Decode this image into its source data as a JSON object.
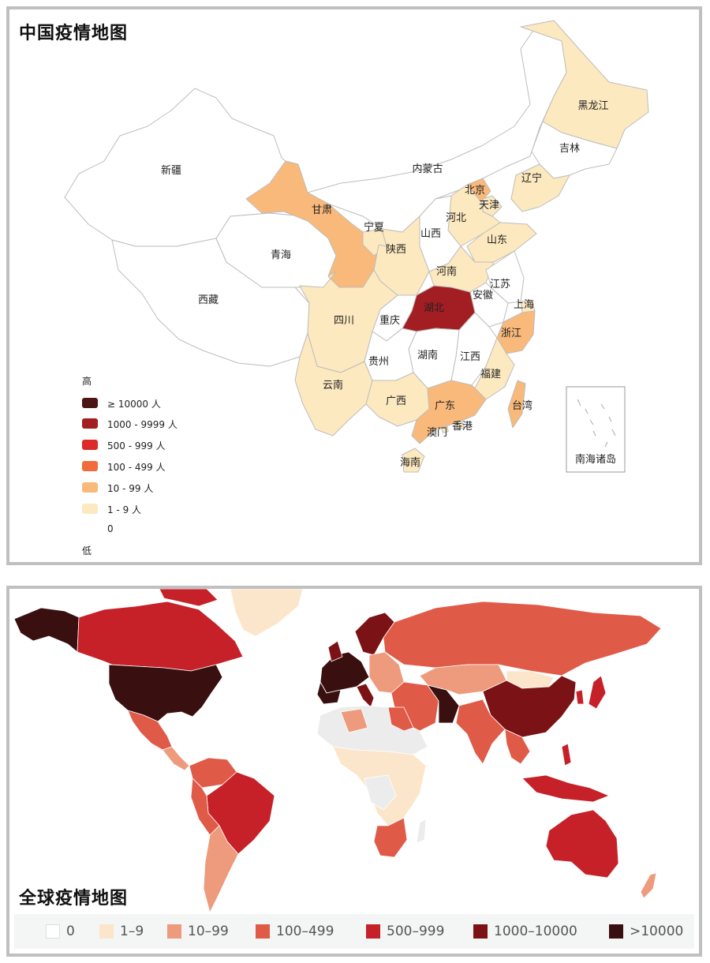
{
  "china_map": {
    "title": "中国疫情地图",
    "legend": {
      "high_label": "高",
      "low_label": "低",
      "items": [
        {
          "label": "≥ 10000 人",
          "color": "#4a1512"
        },
        {
          "label": "1000 - 9999 人",
          "color": "#a31e22"
        },
        {
          "label": "500 - 999 人",
          "color": "#dd2b2b"
        },
        {
          "label": "100 - 499 人",
          "color": "#f26b3c"
        },
        {
          "label": "10 - 99 人",
          "color": "#f9b97a"
        },
        {
          "label": "1 - 9 人",
          "color": "#fde9bf"
        },
        {
          "label": "0",
          "color": "#ffffff"
        }
      ]
    },
    "provinces": [
      {
        "name": "新疆",
        "level": "0"
      },
      {
        "name": "西藏",
        "level": "0"
      },
      {
        "name": "青海",
        "level": "0"
      },
      {
        "name": "甘肃",
        "level": "10 - 99 人"
      },
      {
        "name": "内蒙古",
        "level": "0"
      },
      {
        "name": "宁夏",
        "level": "1 - 9 人"
      },
      {
        "name": "陕西",
        "level": "10 - 99 人"
      },
      {
        "name": "山西",
        "level": "0"
      },
      {
        "name": "河北",
        "level": "1 - 9 人"
      },
      {
        "name": "北京",
        "level": "10 - 99 人"
      },
      {
        "name": "天津",
        "level": "1 - 9 人"
      },
      {
        "name": "辽宁",
        "level": "1 - 9 人"
      },
      {
        "name": "吉林",
        "level": "0"
      },
      {
        "name": "黑龙江",
        "level": "1 - 9 人"
      },
      {
        "name": "山东",
        "level": "1 - 9 人"
      },
      {
        "name": "河南",
        "level": "1 - 9 人"
      },
      {
        "name": "江苏",
        "level": "0"
      },
      {
        "name": "安徽",
        "level": "0"
      },
      {
        "name": "上海",
        "level": "1 - 9 人"
      },
      {
        "name": "浙江",
        "level": "10 - 99 人"
      },
      {
        "name": "湖北",
        "level": "1000 - 9999 人"
      },
      {
        "name": "重庆",
        "level": "0"
      },
      {
        "name": "四川",
        "level": "1 - 9 人"
      },
      {
        "name": "湖南",
        "level": "0"
      },
      {
        "name": "江西",
        "level": "0"
      },
      {
        "name": "福建",
        "level": "1 - 9 人"
      },
      {
        "name": "贵州",
        "level": "0"
      },
      {
        "name": "云南",
        "level": "1 - 9 人"
      },
      {
        "name": "广西",
        "level": "1 - 9 人"
      },
      {
        "name": "广东",
        "level": "10 - 99 人"
      },
      {
        "name": "香港",
        "level": "1 - 9 人"
      },
      {
        "name": "澳门",
        "level": "1 - 9 人"
      },
      {
        "name": "台湾",
        "level": "10 - 99 人"
      },
      {
        "name": "海南",
        "level": "1 - 9 人"
      }
    ],
    "inset_label": "南海诸岛"
  },
  "world_map": {
    "title": "全球疫情地图",
    "legend": [
      {
        "label": "0",
        "color": "#ffffff"
      },
      {
        "label": "1–9",
        "color": "#fbe6cb"
      },
      {
        "label": "10–99",
        "color": "#ee9a7c"
      },
      {
        "label": "100–499",
        "color": "#e05a48"
      },
      {
        "label": "500–999",
        "color": "#c62128"
      },
      {
        "label": "1000–10000",
        "color": "#7b1216"
      },
      {
        "label": ">10000",
        "color": "#3a0f0f"
      }
    ]
  }
}
